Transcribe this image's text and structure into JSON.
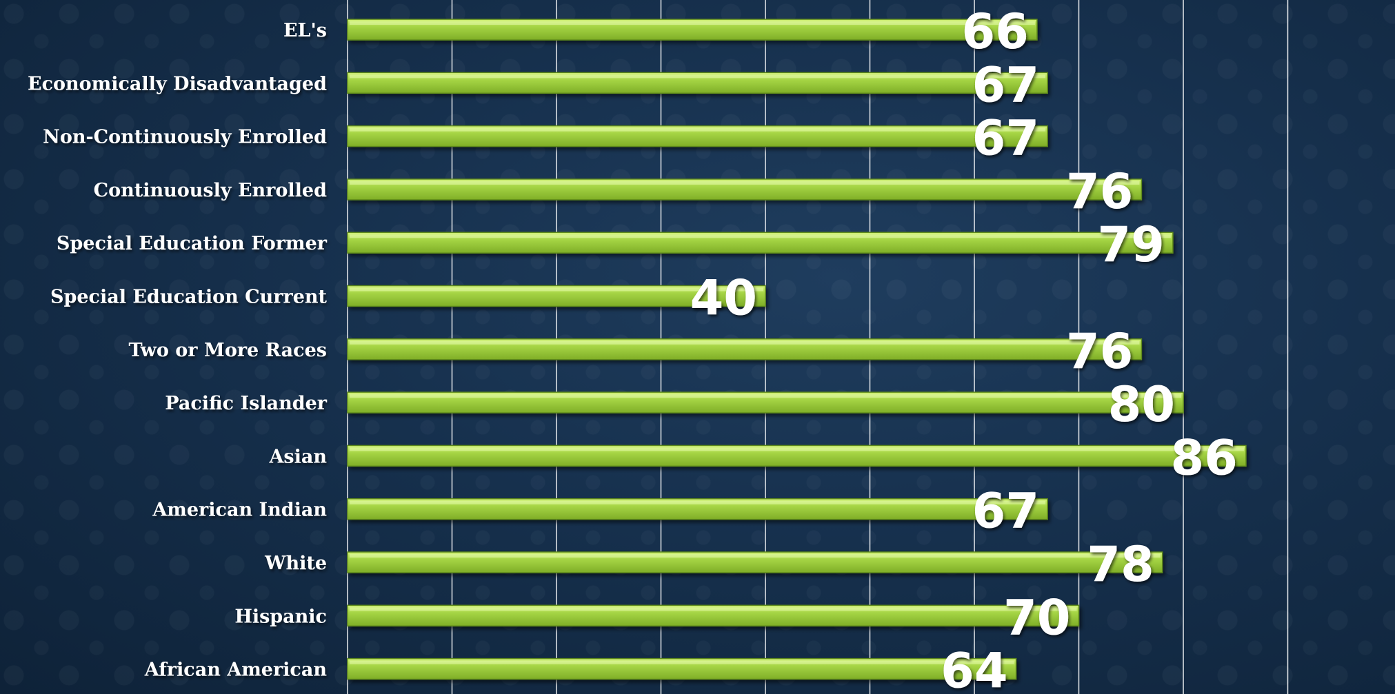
{
  "chart_data": {
    "type": "bar",
    "orientation": "horizontal",
    "title": "",
    "xlabel": "",
    "ylabel": "",
    "categories": [
      "EL's",
      "Economically Disadvantaged",
      "Non-Continuously Enrolled",
      "Continuously Enrolled",
      "Special Education Former",
      "Special Education Current",
      "Two or More Races",
      "Pacific Islander",
      "Asian",
      "American Indian",
      "White",
      "Hispanic",
      "African American"
    ],
    "values": [
      66,
      67,
      67,
      76,
      79,
      40,
      76,
      80,
      86,
      67,
      78,
      70,
      64
    ],
    "xlim": [
      0,
      90
    ],
    "gridlines_every": 10,
    "grid": true,
    "legend": "none",
    "data_labels": true,
    "colors": {
      "bar": "#9acd3c",
      "bar_light": "#c9ef6e",
      "bar_dark": "#6f9e1f",
      "gridline": "#ffffff",
      "label": "#ffffff"
    }
  }
}
